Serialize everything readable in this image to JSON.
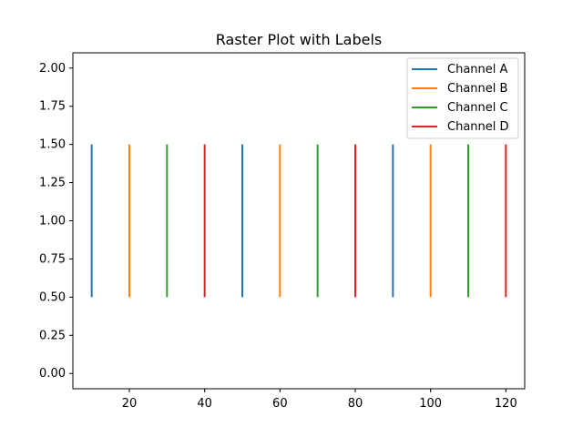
{
  "chart_data": {
    "type": "raster",
    "title": "Raster Plot with Labels",
    "xlabel": "",
    "ylabel": "",
    "xlim": [
      5,
      125
    ],
    "ylim": [
      -0.1,
      2.1
    ],
    "x_ticks": [
      20,
      40,
      60,
      80,
      100,
      120
    ],
    "y_ticks": [
      0.0,
      0.25,
      0.5,
      0.75,
      1.0,
      1.25,
      1.5,
      1.75,
      2.0
    ],
    "y_tick_labels": [
      "0.00",
      "0.25",
      "0.50",
      "0.75",
      "1.00",
      "1.25",
      "1.50",
      "1.75",
      "2.00"
    ],
    "x_tick_labels": [
      "20",
      "40",
      "60",
      "80",
      "100",
      "120"
    ],
    "grid": false,
    "legend_position": "top-right",
    "series": [
      {
        "name": "Channel A",
        "color": "#1f77b4",
        "events": [
          10,
          50,
          90
        ],
        "y_from": 0.5,
        "y_to": 1.5
      },
      {
        "name": "Channel B",
        "color": "#ff7f0e",
        "events": [
          20,
          60,
          100
        ],
        "y_from": 0.5,
        "y_to": 1.5
      },
      {
        "name": "Channel C",
        "color": "#2ca02c",
        "events": [
          30,
          70,
          110
        ],
        "y_from": 0.5,
        "y_to": 1.5
      },
      {
        "name": "Channel D",
        "color": "#d62728",
        "events": [
          40,
          80,
          120
        ],
        "y_from": 0.5,
        "y_to": 1.5
      }
    ]
  }
}
